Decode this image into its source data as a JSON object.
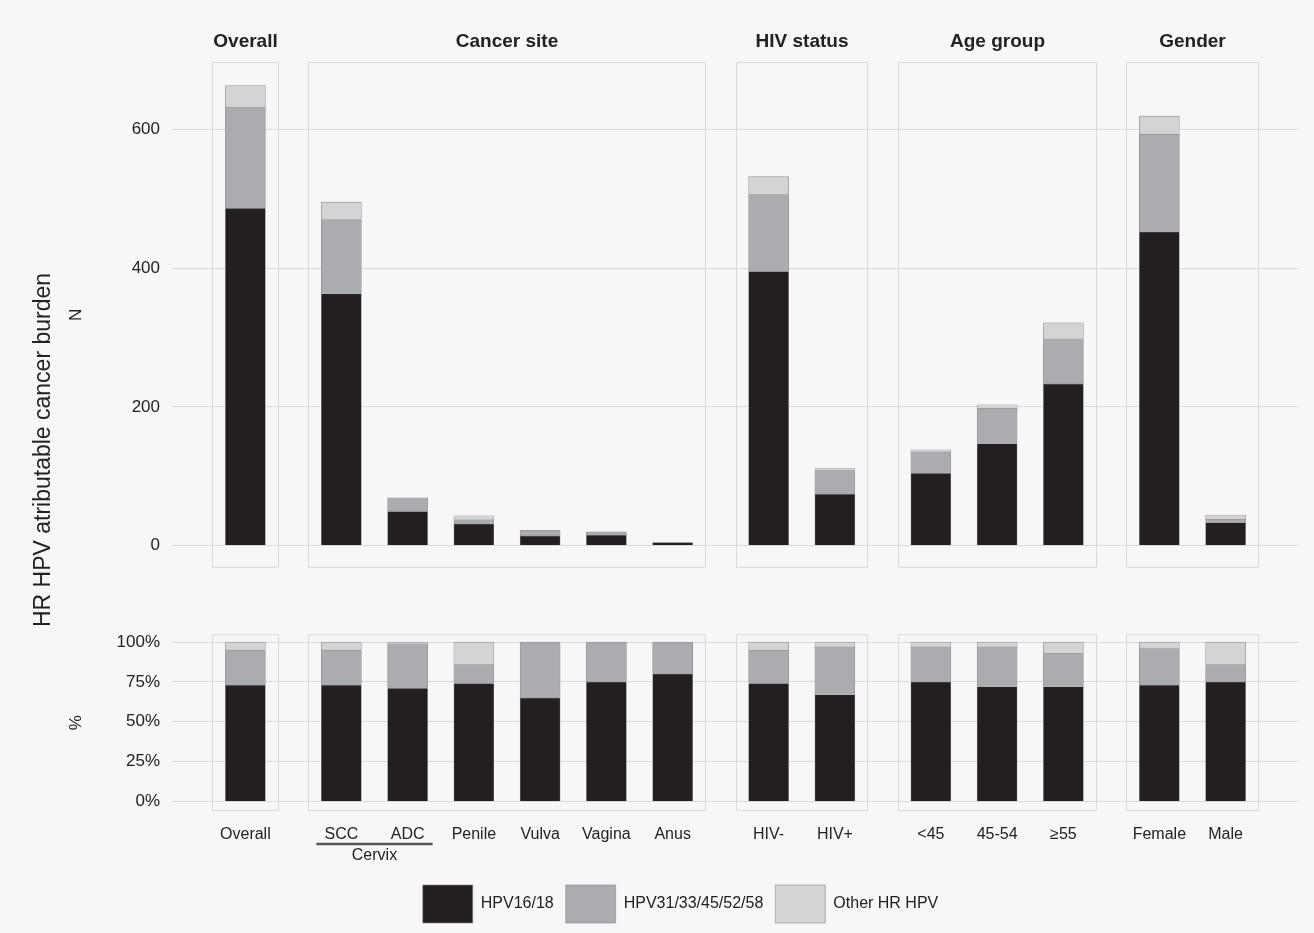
{
  "chart_data": [
    {
      "type": "bar",
      "ylabel": "N",
      "stacked": true,
      "grid": "y",
      "tick_labels": "y",
      "annotations": [
        "HR HPV atributable cancer burden",
        "Overall",
        "Cancer site",
        "HIV status",
        "Age group",
        "Gender"
      ],
      "categories": [
        null,
        null,
        null,
        null,
        null,
        null,
        null,
        null,
        null,
        null,
        null,
        null,
        null,
        null
      ],
      "ylim": [
        -32,
        697
      ],
      "yticks": [
        0,
        200,
        400,
        600
      ],
      "series": [
        {
          "color": "#231f20",
          "values": [
            486,
            363,
            49,
            31,
            14,
            15,
            4,
            395,
            74,
            104,
            147,
            233,
            452,
            33
          ]
        },
        {
          "color": "#abacaf",
          "values": [
            146,
            107,
            20,
            6,
            8,
            5,
            1,
            111,
            34,
            31,
            51,
            65,
            141,
            5
          ]
        },
        {
          "color": "#d3d4d6",
          "values": [
            31,
            25,
            0,
            6,
            0,
            0,
            0,
            26,
            3,
            3,
            5,
            23,
            26,
            6
          ]
        }
      ]
    },
    {
      "type": "bar",
      "ylabel": "%",
      "stacked": true,
      "grid": "y",
      "legend": "bottom",
      "annotations": [
        "Cervix"
      ],
      "categories": [
        "Overall",
        "SCC",
        "ADC",
        "Penile",
        "Vulva",
        "Vagina",
        "Anus",
        "HIV-",
        "HIV+",
        "<45",
        "45-54",
        "≥55",
        "Female",
        "Male"
      ],
      "ylim": [
        -6,
        105
      ],
      "yticks": [
        {
          "value": 0,
          "label": "0%"
        },
        {
          "value": 25,
          "label": "25%"
        },
        {
          "value": 50,
          "label": "50%"
        },
        {
          "value": 75,
          "label": "75%"
        },
        {
          "value": 100,
          "label": "100%"
        }
      ],
      "series": [
        {
          "name": "HPV16/18",
          "color": "#231f20",
          "values": [
            73,
            73,
            71,
            74,
            65,
            75,
            80,
            74,
            67,
            75,
            72,
            72,
            73,
            75
          ]
        },
        {
          "name": "HPV31/33/45/52/58",
          "color": "#abacaf",
          "values": [
            22,
            22,
            28,
            12,
            35,
            25,
            20,
            21,
            30,
            22,
            25,
            21,
            23,
            11
          ]
        },
        {
          "name": "Other HR HPV",
          "color": "#d3d4d6",
          "values": [
            5,
            5,
            1,
            14,
            0,
            0,
            0,
            5,
            3,
            3,
            3,
            7,
            4,
            14
          ]
        }
      ]
    }
  ]
}
